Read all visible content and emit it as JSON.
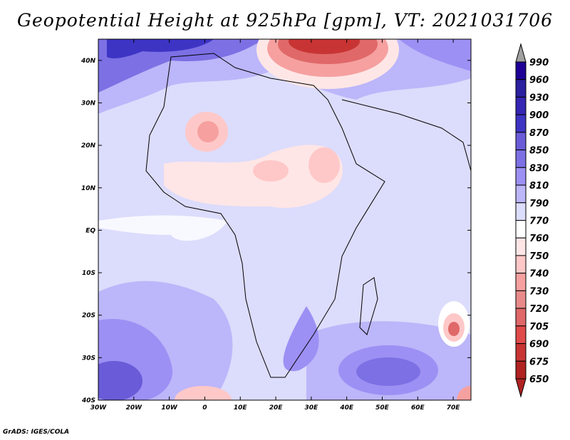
{
  "title": "Geopotential Height at 925hPa [gpm], VT: 2021031706",
  "credit": "GrADS: IGES/COLA",
  "map": {
    "lon_range": [
      -30,
      75
    ],
    "lat_range": [
      -40,
      45
    ],
    "lat_labels": [
      "40S",
      "30S",
      "20S",
      "10S",
      "EQ",
      "10N",
      "20N",
      "30N",
      "40N"
    ],
    "lat_values": [
      -40,
      -30,
      -20,
      -10,
      0,
      10,
      20,
      30,
      40
    ],
    "lon_labels": [
      "30W",
      "20W",
      "10W",
      "0",
      "10E",
      "20E",
      "30E",
      "40E",
      "50E",
      "60E",
      "70E"
    ],
    "lon_values": [
      -30,
      -20,
      -10,
      0,
      10,
      20,
      30,
      40,
      50,
      60,
      70
    ]
  },
  "colorbar": {
    "levels": [
      "990",
      "960",
      "930",
      "900",
      "870",
      "850",
      "830",
      "810",
      "790",
      "770",
      "760",
      "750",
      "740",
      "730",
      "720",
      "705",
      "690",
      "675",
      "650"
    ],
    "colors": [
      "#1e0096",
      "#2a20a0",
      "#3626b4",
      "#3e34c4",
      "#6a5cd8",
      "#7c70e4",
      "#9c90f4",
      "#bcb6fa",
      "#dcdcfc",
      "#ffffff",
      "#ffe6e6",
      "#ffc8c8",
      "#f6a0a0",
      "#e88a8a",
      "#e06868",
      "#e04a4a",
      "#c83434",
      "#b02222"
    ],
    "over_color": "#a0a0a0",
    "under_color": "#b02222"
  }
}
